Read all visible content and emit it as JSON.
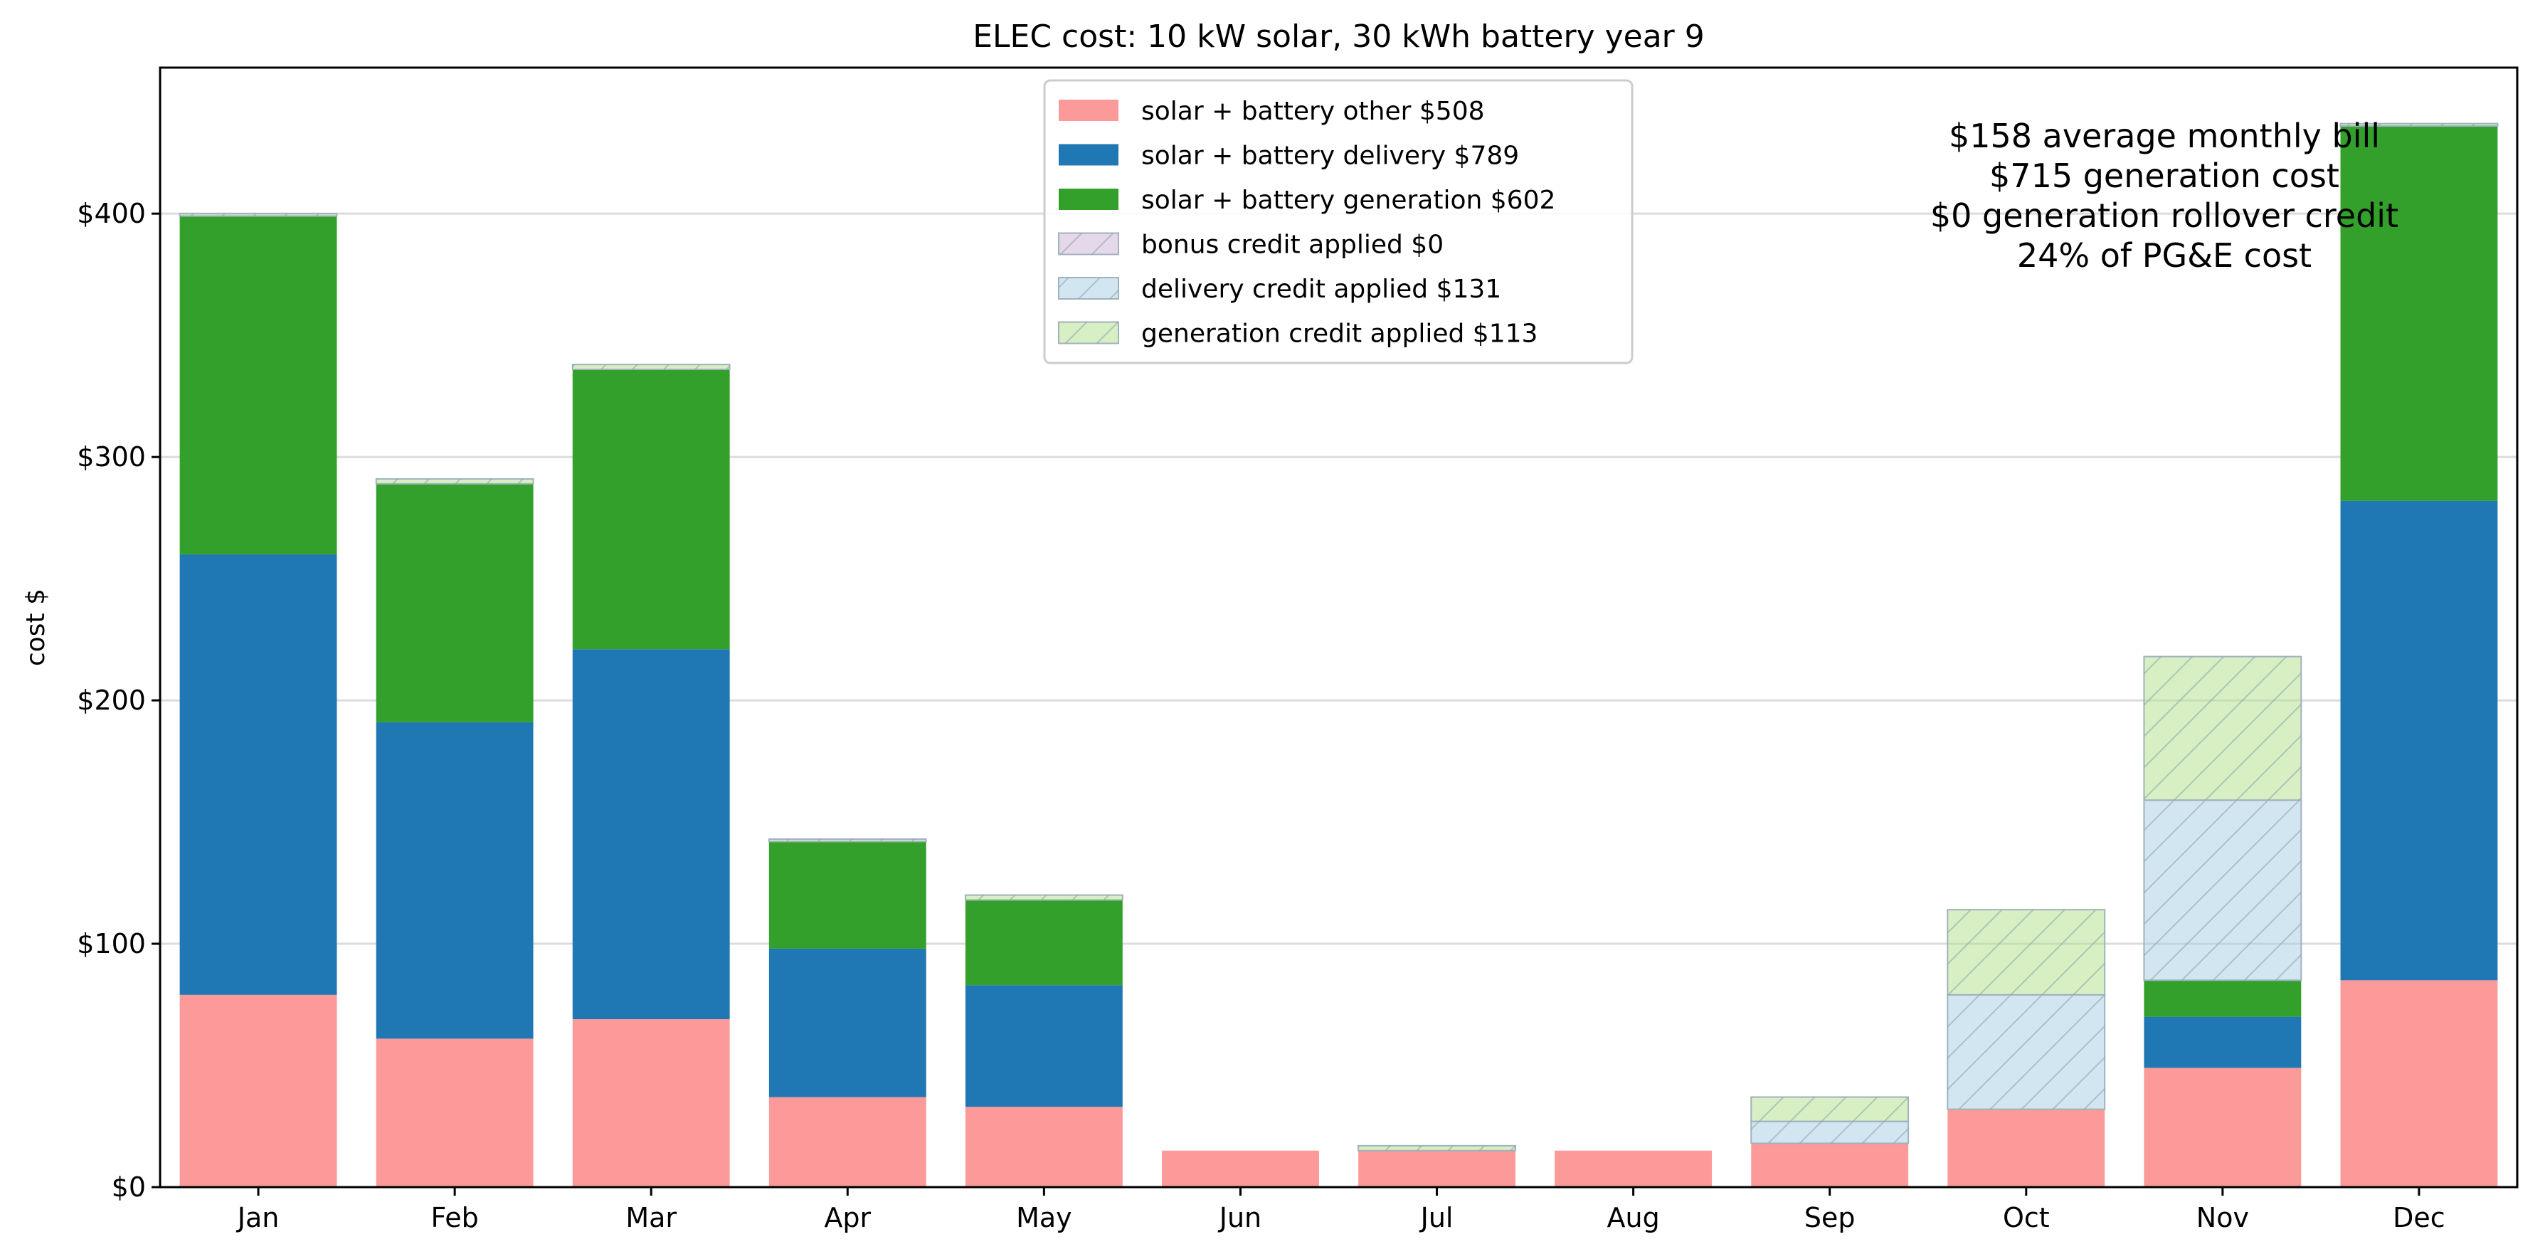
{
  "chart_data": {
    "type": "bar",
    "stacked": true,
    "title": "ELEC cost: 10 kW solar, 30 kWh battery year 9",
    "xlabel": "",
    "ylabel": "cost $",
    "ylim": [
      0,
      460
    ],
    "yticks": [
      0,
      100,
      200,
      300,
      400
    ],
    "ytick_labels": [
      "$0",
      "$100",
      "$200",
      "$300",
      "$400"
    ],
    "grid": "horizontal",
    "legend_position": "top-center",
    "categories": [
      "Jan",
      "Feb",
      "Mar",
      "Apr",
      "May",
      "Jun",
      "Jul",
      "Aug",
      "Sep",
      "Oct",
      "Nov",
      "Dec"
    ],
    "series": [
      {
        "name": "solar + battery other $508",
        "color": "#fb9a99",
        "hatch": false,
        "values": [
          79,
          61,
          69,
          37,
          33,
          15,
          15,
          15,
          18,
          32,
          49,
          85
        ]
      },
      {
        "name": "solar + battery delivery $789",
        "color": "#1f78b4",
        "hatch": false,
        "values": [
          181,
          130,
          152,
          61,
          50,
          0,
          0,
          0,
          0,
          0,
          21,
          197
        ]
      },
      {
        "name": "solar + battery generation $602",
        "color": "#33a02c",
        "hatch": false,
        "values": [
          139,
          98,
          115,
          44,
          35,
          0,
          0,
          0,
          0,
          0,
          15,
          154
        ]
      },
      {
        "name": "bonus credit applied $0",
        "color": "#cab2d6",
        "hatch": true,
        "values": [
          0,
          0,
          0,
          0,
          0,
          0,
          0,
          0,
          0,
          0,
          0,
          0
        ]
      },
      {
        "name": "delivery credit applied $131",
        "color": "#a6cee3",
        "hatch": true,
        "values": [
          0,
          0,
          0,
          0,
          0,
          0,
          0,
          0,
          9,
          47,
          74,
          0
        ]
      },
      {
        "name": "generation credit applied $113",
        "color": "#b2df8a",
        "hatch": true,
        "values": [
          1,
          2,
          2,
          1,
          2,
          0,
          2,
          0,
          10,
          35,
          59,
          1
        ]
      }
    ],
    "annotation_lines": [
      "$158 average monthly bill",
      "$715 generation cost",
      "$0 generation rollover credit",
      "24% of PG&E cost"
    ]
  }
}
